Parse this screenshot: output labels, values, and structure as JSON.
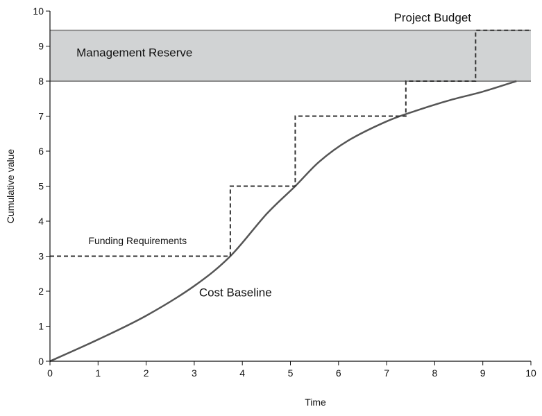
{
  "chart_data": {
    "type": "line",
    "title": "",
    "xlabel": "Time",
    "ylabel": "Cumulative value",
    "xlim": [
      0,
      10
    ],
    "ylim": [
      0,
      10
    ],
    "x_ticks": [
      0,
      1,
      2,
      3,
      4,
      5,
      6,
      7,
      8,
      9,
      10
    ],
    "y_ticks": [
      0,
      1,
      2,
      3,
      4,
      5,
      6,
      7,
      8,
      9,
      10
    ],
    "grid": false,
    "legend": "none",
    "reserve_band": {
      "label": "Management Reserve",
      "y_low": 8.0,
      "y_high": 9.45,
      "color": "#d1d3d4"
    },
    "project_budget_label": "Project Budget",
    "series": [
      {
        "name": "Cost Baseline",
        "style": "solid",
        "color": "#555555",
        "x": [
          0,
          1,
          2,
          3,
          3.75,
          4.5,
          5.1,
          5.6,
          6.2,
          7.0,
          7.6,
          8.3,
          9.0,
          9.7
        ],
        "y": [
          0,
          0.62,
          1.3,
          2.15,
          3.0,
          4.2,
          5.0,
          5.7,
          6.3,
          6.85,
          7.15,
          7.45,
          7.7,
          8.0
        ]
      },
      {
        "name": "Funding Requirements",
        "style": "dashed",
        "color": "#333333",
        "x": [
          0,
          3.75,
          3.75,
          5.1,
          5.1,
          7.4,
          7.4,
          8.85,
          8.85,
          10.0
        ],
        "y": [
          3,
          3,
          5,
          5,
          7,
          7,
          8,
          8,
          9.45,
          9.45
        ]
      }
    ],
    "annotations": [
      {
        "text": "Management Reserve",
        "x": 0.55,
        "y": 8.7,
        "size": "large"
      },
      {
        "text": "Project Budget",
        "x": 7.15,
        "y": 9.7,
        "size": "large"
      },
      {
        "text": "Funding Requirements",
        "x": 0.8,
        "y": 3.35,
        "size": "small"
      },
      {
        "text": "Cost Baseline",
        "x": 3.1,
        "y": 1.85,
        "size": "large"
      }
    ]
  }
}
